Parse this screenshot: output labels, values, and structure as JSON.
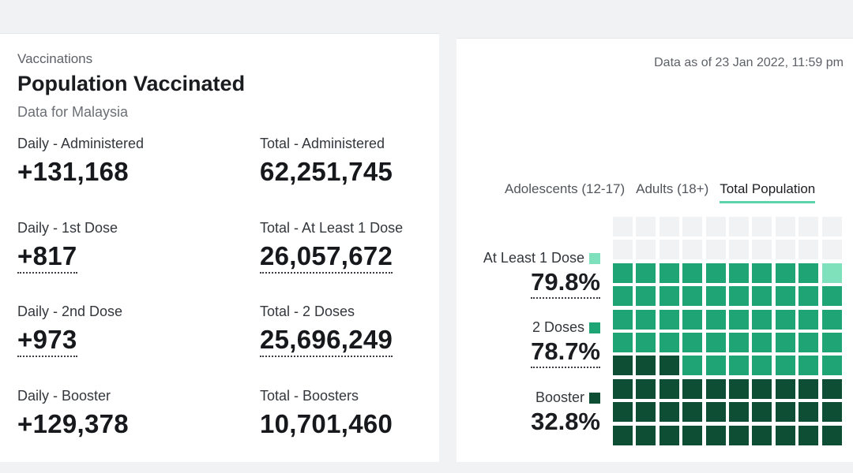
{
  "left": {
    "eyebrow": "Vaccinations",
    "title": "Population Vaccinated",
    "subtitle": "Data for Malaysia",
    "stats": [
      {
        "label": "Daily - Administered",
        "value": "+131,168"
      },
      {
        "label": "Total - Administered",
        "value": "62,251,745"
      },
      {
        "label": "Daily - 1st Dose",
        "value": "+817"
      },
      {
        "label": "Total - At Least 1 Dose",
        "value": "26,057,672"
      },
      {
        "label": "Daily - 2nd Dose",
        "value": "+973"
      },
      {
        "label": "Total - 2 Doses",
        "value": "25,696,249"
      },
      {
        "label": "Daily - Booster",
        "value": "+129,378"
      },
      {
        "label": "Total - Boosters",
        "value": "10,701,460"
      }
    ]
  },
  "right": {
    "as_of": "Data as of 23 Jan 2022, 11:59 pm",
    "tabs": [
      {
        "label": "Adolescents (12-17)",
        "active": false
      },
      {
        "label": "Adults (18+)",
        "active": false
      },
      {
        "label": "Total Population",
        "active": true
      }
    ],
    "legend": [
      {
        "label": "At Least 1 Dose",
        "value": "79.8%",
        "color": "#7fe0bc"
      },
      {
        "label": "2 Doses",
        "value": "78.7%",
        "color": "#1fa476"
      },
      {
        "label": "Booster",
        "value": "32.8%",
        "color": "#0e4e35"
      }
    ]
  },
  "chart_data": {
    "type": "waffle",
    "grid": [
      10,
      10
    ],
    "series": [
      {
        "name": "At Least 1 Dose",
        "value": 79.8
      },
      {
        "name": "2 Doses",
        "value": 78.7
      },
      {
        "name": "Booster",
        "value": 32.8
      }
    ],
    "colors": {
      "booster": "#0e4e35",
      "two_doses": "#1fa476",
      "one_dose": "#7fe0bc",
      "unvaccinated": "#f1f2f4"
    }
  }
}
